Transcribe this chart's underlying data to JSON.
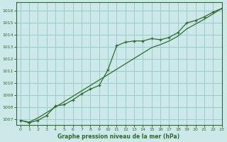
{
  "xlabel": "Graphe pression niveau de la mer (hPa)",
  "bg_color": "#cce8e8",
  "grid_color": "#99cccc",
  "line_color": "#2d6b2d",
  "xlim": [
    -0.5,
    23
  ],
  "ylim": [
    1006.5,
    1016.7
  ],
  "yticks": [
    1007,
    1008,
    1009,
    1010,
    1011,
    1012,
    1013,
    1014,
    1015,
    1016
  ],
  "xticks": [
    0,
    1,
    2,
    3,
    4,
    5,
    6,
    7,
    8,
    9,
    10,
    11,
    12,
    13,
    14,
    15,
    16,
    17,
    18,
    19,
    20,
    21,
    22,
    23
  ],
  "series1_x": [
    0,
    1,
    2,
    3,
    4,
    5,
    6,
    7,
    8,
    9,
    10,
    11,
    12,
    13,
    14,
    15,
    16,
    17,
    18,
    19,
    20,
    21,
    22,
    23
  ],
  "series1_y": [
    1006.9,
    1006.7,
    1006.9,
    1007.3,
    1008.1,
    1008.2,
    1008.6,
    1009.1,
    1009.5,
    1009.8,
    1011.1,
    1013.1,
    1013.4,
    1013.5,
    1013.5,
    1013.7,
    1013.6,
    1013.8,
    1014.2,
    1015.0,
    1015.2,
    1015.5,
    1015.9,
    1016.2
  ],
  "series2_x": [
    0,
    1,
    2,
    3,
    4,
    5,
    6,
    7,
    8,
    9,
    10,
    11,
    12,
    13,
    14,
    15,
    16,
    17,
    18,
    19,
    20,
    21,
    22,
    23
  ],
  "series2_y": [
    1006.9,
    1006.75,
    1007.1,
    1007.55,
    1008.0,
    1008.45,
    1008.9,
    1009.35,
    1009.8,
    1010.25,
    1010.7,
    1011.15,
    1011.6,
    1012.05,
    1012.5,
    1012.95,
    1013.2,
    1013.5,
    1013.9,
    1014.5,
    1014.9,
    1015.3,
    1015.75,
    1016.2
  ]
}
